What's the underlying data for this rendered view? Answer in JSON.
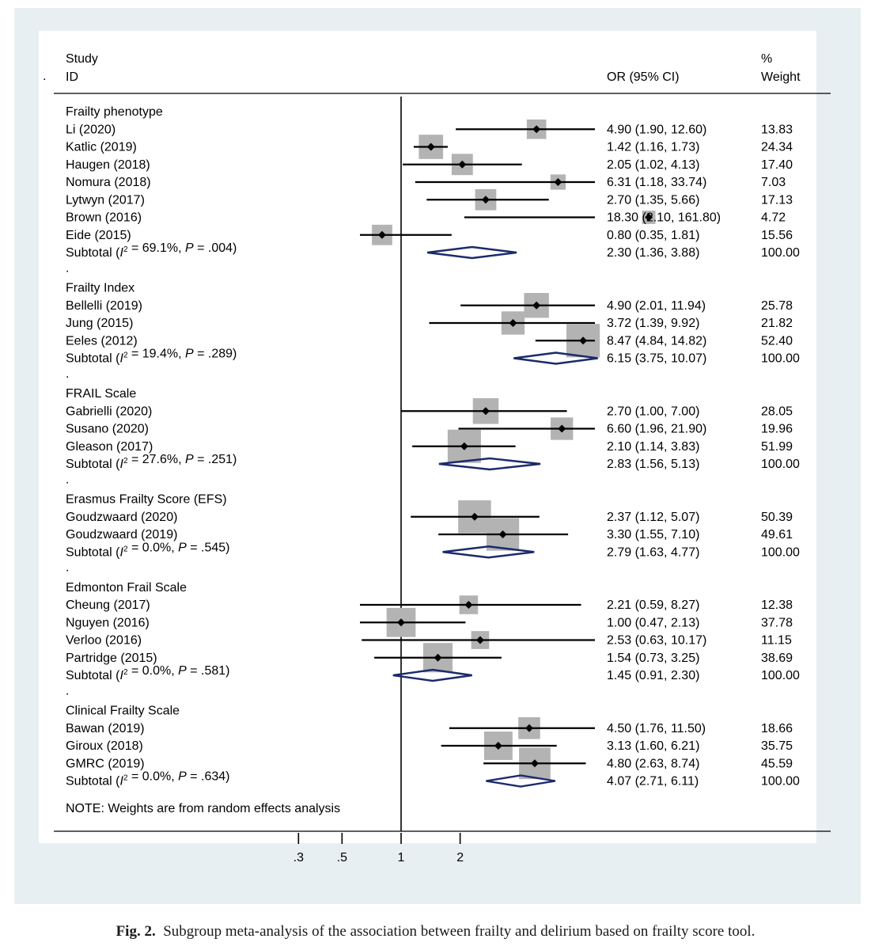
{
  "figure": {
    "caption_label": "Fig. 2.",
    "caption_text": "Subgroup meta-analysis of the association between frailty and delirium based on frailty score tool.",
    "stray_mark": "."
  },
  "chart_data": {
    "type": "forest",
    "header": {
      "study_line1": "Study",
      "study_line2": "ID",
      "or_header": "OR (95% CI)",
      "weight_line1": "%",
      "weight_line2": "Weight"
    },
    "null_value": 1,
    "x_scale": "log",
    "x_ticks": [
      0.3,
      0.5,
      1,
      2
    ],
    "x_tick_labels": [
      ".3",
      ".5",
      "1",
      "2"
    ],
    "note": "NOTE: Weights are from random effects analysis",
    "separator": ".",
    "colors": {
      "marker": "#000000",
      "box": "#b3b3b3",
      "diamond": "#1b2a6b",
      "line": "#000000"
    },
    "groups": [
      {
        "name": "Frailty phenotype",
        "studies": [
          {
            "study": "Li (2020)",
            "or": 4.9,
            "lo": 1.9,
            "hi": 12.6,
            "text": "4.90 (1.90, 12.60)",
            "weight": "13.83"
          },
          {
            "study": "Katlic (2019)",
            "or": 1.42,
            "lo": 1.16,
            "hi": 1.73,
            "text": "1.42 (1.16, 1.73)",
            "weight": "24.34"
          },
          {
            "study": "Haugen (2018)",
            "or": 2.05,
            "lo": 1.02,
            "hi": 4.13,
            "text": "2.05 (1.02, 4.13)",
            "weight": "17.40"
          },
          {
            "study": "Nomura (2018)",
            "or": 6.31,
            "lo": 1.18,
            "hi": 33.74,
            "text": "6.31 (1.18, 33.74)",
            "weight": "7.03"
          },
          {
            "study": "Lytwyn (2017)",
            "or": 2.7,
            "lo": 1.35,
            "hi": 5.66,
            "text": "2.70 (1.35, 5.66)",
            "weight": "17.13"
          },
          {
            "study": "Brown (2016)",
            "or": 18.3,
            "lo": 2.1,
            "hi": 161.8,
            "text": "18.30 (2.10, 161.80)",
            "weight": "4.72"
          },
          {
            "study": "Eide (2015)",
            "or": 0.8,
            "lo": 0.35,
            "hi": 1.81,
            "text": "0.80 (0.35, 1.81)",
            "weight": "15.56"
          }
        ],
        "subtotal": {
          "label_prefix": "Subtotal  (",
          "i2_symbol": "I",
          "i2_sup": "2",
          "i2_text": " = 69.1%, ",
          "p_symbol": "P",
          "p_text": " = .004)",
          "or": 2.3,
          "lo": 1.36,
          "hi": 3.88,
          "text": "2.30 (1.36, 3.88)",
          "weight": "100.00"
        }
      },
      {
        "name": "Frailty Index",
        "studies": [
          {
            "study": "Bellelli  (2019)",
            "or": 4.9,
            "lo": 2.01,
            "hi": 11.94,
            "text": "4.90 (2.01, 11.94)",
            "weight": "25.78"
          },
          {
            "study": "Jung (2015)",
            "or": 3.72,
            "lo": 1.39,
            "hi": 9.92,
            "text": "3.72 (1.39, 9.92)",
            "weight": "21.82"
          },
          {
            "study": "Eeles (2012)",
            "or": 8.47,
            "lo": 4.84,
            "hi": 14.82,
            "text": "8.47 (4.84, 14.82)",
            "weight": "52.40"
          }
        ],
        "subtotal": {
          "label_prefix": "Subtotal  (",
          "i2_symbol": "I",
          "i2_sup": "2",
          "i2_text": " = 19.4%, ",
          "p_symbol": "P",
          "p_text": " = .289)",
          "or": 6.15,
          "lo": 3.75,
          "hi": 10.07,
          "text": "6.15 (3.75, 10.07)",
          "weight": "100.00"
        }
      },
      {
        "name": "FRAIL Scale",
        "studies": [
          {
            "study": "Gabrielli (2020)",
            "or": 2.7,
            "lo": 1.0,
            "hi": 7.0,
            "text": "2.70 (1.00, 7.00)",
            "weight": "28.05"
          },
          {
            "study": "Susano (2020)",
            "or": 6.6,
            "lo": 1.96,
            "hi": 21.9,
            "text": "6.60 (1.96, 21.90)",
            "weight": "19.96"
          },
          {
            "study": "Gleason (2017)",
            "or": 2.1,
            "lo": 1.14,
            "hi": 3.83,
            "text": "2.10 (1.14, 3.83)",
            "weight": "51.99"
          }
        ],
        "subtotal": {
          "label_prefix": "Subtotal  (",
          "i2_symbol": "I",
          "i2_sup": "2",
          "i2_text": " = 27.6%, ",
          "p_symbol": "P",
          "p_text": " = .251)",
          "or": 2.83,
          "lo": 1.56,
          "hi": 5.13,
          "text": "2.83 (1.56, 5.13)",
          "weight": "100.00"
        }
      },
      {
        "name": "Erasmus Frailty Score (EFS)",
        "studies": [
          {
            "study": "Goudzwaard (2020)",
            "or": 2.37,
            "lo": 1.12,
            "hi": 5.07,
            "text": "2.37 (1.12, 5.07)",
            "weight": "50.39"
          },
          {
            "study": "Goudzwaard (2019)",
            "or": 3.3,
            "lo": 1.55,
            "hi": 7.1,
            "text": "3.30 (1.55, 7.10)",
            "weight": "49.61"
          }
        ],
        "subtotal": {
          "label_prefix": "Subtotal  (",
          "i2_symbol": "I",
          "i2_sup": "2",
          "i2_text": " = 0.0%, ",
          "p_symbol": "P",
          "p_text": " = .545)",
          "or": 2.79,
          "lo": 1.63,
          "hi": 4.77,
          "text": "2.79 (1.63, 4.77)",
          "weight": "100.00"
        }
      },
      {
        "name": "Edmonton Frail Scale",
        "studies": [
          {
            "study": "Cheung (2017)",
            "or": 2.21,
            "lo": 0.59,
            "hi": 8.27,
            "text": "2.21 (0.59, 8.27)",
            "weight": "12.38"
          },
          {
            "study": "Nguyen (2016)",
            "or": 1.0,
            "lo": 0.47,
            "hi": 2.13,
            "text": "1.00 (0.47, 2.13)",
            "weight": "37.78"
          },
          {
            "study": "Verloo (2016)",
            "or": 2.53,
            "lo": 0.63,
            "hi": 10.17,
            "text": "2.53 (0.63, 10.17)",
            "weight": "11.15"
          },
          {
            "study": "Partridge (2015)",
            "or": 1.54,
            "lo": 0.73,
            "hi": 3.25,
            "text": "1.54 (0.73, 3.25)",
            "weight": "38.69"
          }
        ],
        "subtotal": {
          "label_prefix": "Subtotal  (",
          "i2_symbol": "I",
          "i2_sup": "2",
          "i2_text": " = 0.0%, ",
          "p_symbol": "P",
          "p_text": " = .581)",
          "or": 1.45,
          "lo": 0.91,
          "hi": 2.3,
          "text": "1.45 (0.91, 2.30)",
          "weight": "100.00"
        }
      },
      {
        "name": "Clinical Frailty Scale",
        "studies": [
          {
            "study": "Bawan (2019)",
            "or": 4.5,
            "lo": 1.76,
            "hi": 11.5,
            "text": "4.50 (1.76, 11.50)",
            "weight": "18.66"
          },
          {
            "study": "Giroux (2018)",
            "or": 3.13,
            "lo": 1.6,
            "hi": 6.21,
            "text": "3.13 (1.60, 6.21)",
            "weight": "35.75"
          },
          {
            "study": "GMRC (2019)",
            "or": 4.8,
            "lo": 2.63,
            "hi": 8.74,
            "text": "4.80 (2.63, 8.74)",
            "weight": "45.59"
          }
        ],
        "subtotal": {
          "label_prefix": "Subtotal  (",
          "i2_symbol": "I",
          "i2_sup": "2",
          "i2_text": " = 0.0%, ",
          "p_symbol": "P",
          "p_text": " = .634)",
          "or": 4.07,
          "lo": 2.71,
          "hi": 6.11,
          "text": "4.07 (2.71, 6.11)",
          "weight": "100.00"
        }
      }
    ]
  }
}
